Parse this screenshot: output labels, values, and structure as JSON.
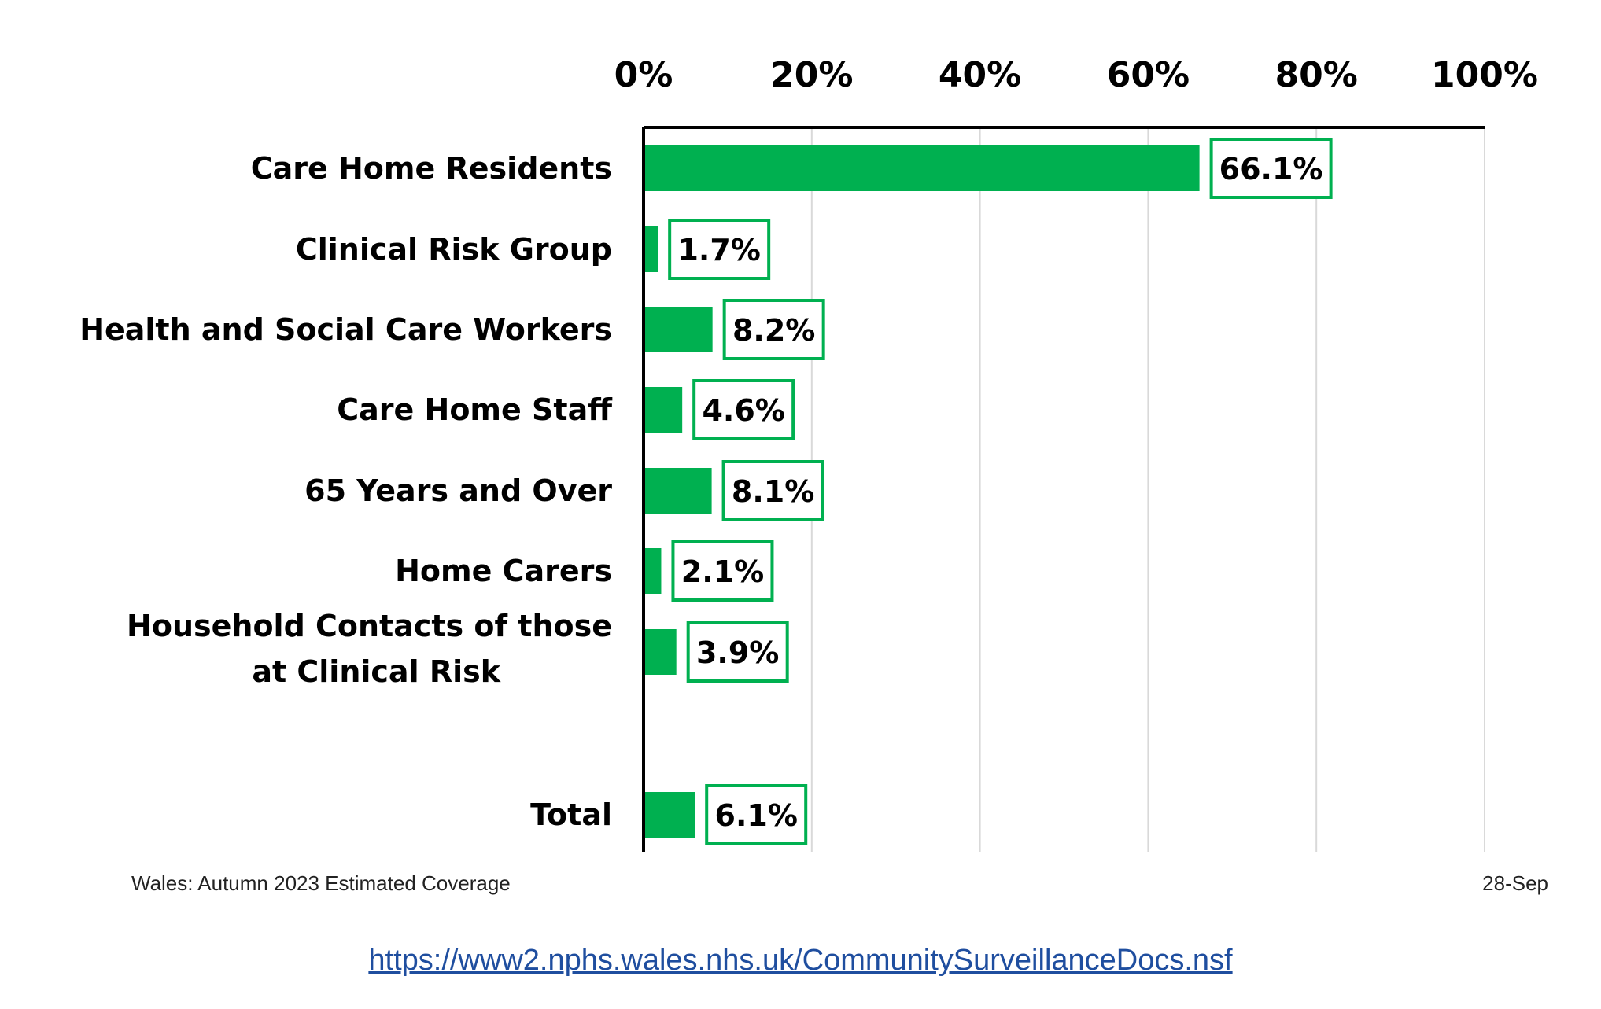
{
  "chart_data": {
    "type": "bar",
    "orientation": "horizontal",
    "categories": [
      "Care Home Residents",
      "Clinical Risk Group",
      "Health and Social Care Workers",
      "Care Home Staff",
      "65 Years and Over",
      "Home Carers",
      "Household Contacts of those at Clinical Risk",
      "Total"
    ],
    "category_lines": [
      [
        "Care Home Residents"
      ],
      [
        "Clinical Risk Group"
      ],
      [
        "Health and Social Care Workers"
      ],
      [
        "Care Home Staff"
      ],
      [
        "65 Years and Over"
      ],
      [
        "Home Carers"
      ],
      [
        "Household Contacts of those",
        "at Clinical Risk"
      ],
      [
        "Total"
      ]
    ],
    "values": [
      66.1,
      1.7,
      8.2,
      4.6,
      8.1,
      2.1,
      3.9,
      6.1
    ],
    "data_labels": [
      "66.1%",
      "1.7%",
      "8.2%",
      "4.6%",
      "8.1%",
      "2.1%",
      "3.9%",
      "6.1%"
    ],
    "xlim": [
      0,
      100
    ],
    "x_ticks": [
      0,
      20,
      40,
      60,
      80,
      100
    ],
    "x_tick_labels": [
      "0%",
      "20%",
      "40%",
      "60%",
      "80%",
      "100%"
    ],
    "x_axis_position": "top",
    "grid": true,
    "bar_color": "#00b050",
    "label_box_color": "#00b050",
    "gridline_color": "#d9d9d9",
    "footnote_left": "Wales: Autumn 2023 Estimated Coverage",
    "footnote_right": "28-Sep"
  },
  "source_link": "https://www2.nphs.wales.nhs.uk/CommunitySurveillanceDocs.nsf"
}
